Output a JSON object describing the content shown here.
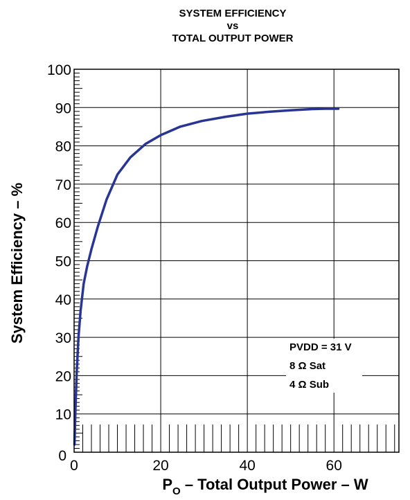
{
  "chart_data": {
    "type": "line",
    "title_lines": [
      "SYSTEM EFFICIENCY",
      "vs",
      "TOTAL OUTPUT POWER"
    ],
    "xlabel": {
      "main": "P",
      "sub": "O",
      "rest": " – Total Output Power – W"
    },
    "ylabel": "System Efficiency – %",
    "xlim": [
      0,
      75
    ],
    "ylim": [
      0,
      100
    ],
    "x_ticks": [
      0,
      20,
      40,
      60
    ],
    "x_tick_labels": [
      "0",
      "20",
      "40",
      "60"
    ],
    "y_ticks": [
      10,
      20,
      30,
      40,
      50,
      60,
      70,
      80,
      90,
      100
    ],
    "y_tick_labels": [
      "10",
      "20",
      "30",
      "40",
      "50",
      "60",
      "70",
      "80",
      "90",
      "100"
    ],
    "origin_label": "0",
    "grid": true,
    "annotations": [
      "PVDD = 31 V",
      "8 Ω Sat",
      "4 Ω Sub"
    ],
    "line_color": "#283593",
    "series": [
      {
        "x": [
          0.1,
          0.3,
          0.6,
          1.0,
          1.5,
          2.2,
          3.0,
          4.0,
          5.5,
          7.5,
          10,
          13,
          16.5,
          20,
          24.5,
          29.5,
          35,
          40,
          45,
          50,
          55,
          58,
          61
        ],
        "y": [
          2,
          11,
          21,
          30,
          37,
          44,
          48.5,
          53,
          59,
          66,
          72.5,
          77,
          80.5,
          82.8,
          85,
          86.5,
          87.6,
          88.4,
          88.9,
          89.3,
          89.6,
          89.7,
          89.7
        ]
      }
    ]
  }
}
